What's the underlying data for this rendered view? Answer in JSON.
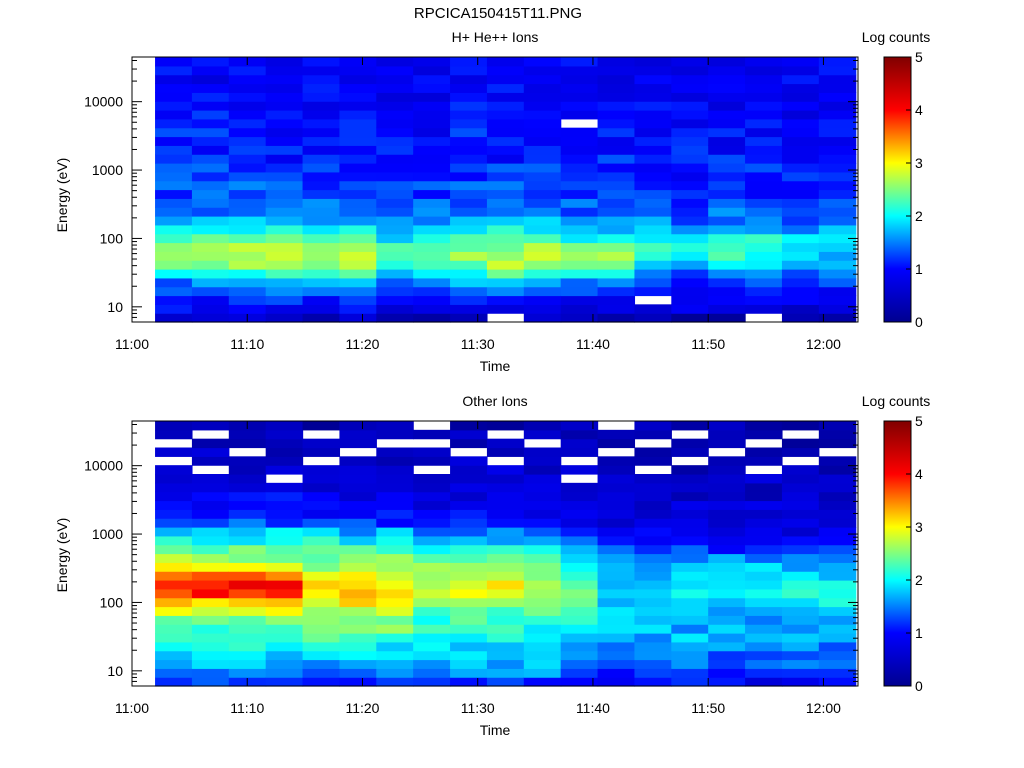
{
  "page_title": "RPCICA150415T11.PNG",
  "colors": {
    "colormap": [
      "#00008f",
      "#0000ff",
      "#00ffff",
      "#ffff00",
      "#ff0000",
      "#800000"
    ],
    "gap": "#ffffff"
  },
  "chart_data": [
    {
      "type": "heatmap",
      "title": "H+ He++ Ions",
      "xlabel": "Time",
      "ylabel": "Energy (eV)",
      "xticks": [
        "11:00",
        "11:10",
        "11:20",
        "11:30",
        "11:40",
        "11:50",
        "12:00"
      ],
      "xlim": [
        "11:00",
        "12:03"
      ],
      "y_scale": "log",
      "ylim": [
        6,
        45000
      ],
      "yticks": [
        "10",
        "100",
        "1000",
        "10000"
      ],
      "colorbar": {
        "label": "Log counts",
        "range": [
          0,
          5
        ],
        "ticks": [
          "0",
          "1",
          "2",
          "3",
          "4",
          "5"
        ]
      },
      "columns_start": "11:02",
      "column_minutes": 3.2,
      "energy_bins": 30,
      "profile_log_counts": [
        [
          0.4,
          0.9,
          1.0,
          1.2,
          1.5,
          1.9,
          2.3,
          2.6,
          2.5,
          2.2,
          1.9,
          1.6,
          1.5,
          1.4,
          1.3,
          1.3,
          1.2,
          1.2,
          1.2,
          1.1,
          1.1,
          1.1,
          1.0,
          1.0,
          1.0,
          1.0,
          0.9,
          0.9,
          0.9,
          0.9
        ],
        [
          0.5,
          0.9,
          1.1,
          1.4,
          1.8,
          2.2,
          2.5,
          2.7,
          2.6,
          2.3,
          2.0,
          1.7,
          1.5,
          1.4,
          1.3,
          1.3,
          1.2,
          1.2,
          1.2,
          1.1,
          1.1,
          1.1,
          1.0,
          1.0,
          1.0,
          1.0,
          0.9,
          0.9,
          0.9,
          0.9
        ],
        [
          0.5,
          0.9,
          1.1,
          1.4,
          1.8,
          2.2,
          2.6,
          2.8,
          2.6,
          2.3,
          2.0,
          1.7,
          1.5,
          1.4,
          1.3,
          1.3,
          1.2,
          1.2,
          1.1,
          1.1,
          1.1,
          1.0,
          1.0,
          1.0,
          1.0,
          0.9,
          0.9,
          0.9,
          0.9,
          0.9
        ],
        [
          0.4,
          0.8,
          1.0,
          1.2,
          1.5,
          1.9,
          2.3,
          2.5,
          2.4,
          2.1,
          1.8,
          1.6,
          1.4,
          1.3,
          1.2,
          1.2,
          1.2,
          1.1,
          1.1,
          1.1,
          1.0,
          1.0,
          1.0,
          1.0,
          0.9,
          0.9,
          0.9,
          0.9,
          0.9,
          0.9
        ],
        [
          0.3,
          0.8,
          1.0,
          1.1,
          1.3,
          1.6,
          1.9,
          2.2,
          2.2,
          2.0,
          1.8,
          1.5,
          1.4,
          1.3,
          1.2,
          1.2,
          1.1,
          1.1,
          1.1,
          1.0,
          1.0,
          1.0,
          1.0,
          0.9,
          0.9,
          0.9,
          0.9,
          0.9,
          0.9,
          0.9
        ],
        [
          0.2,
          0.7,
          0.9,
          1.0,
          1.2,
          1.4,
          1.6,
          1.8,
          1.9,
          1.8,
          1.6,
          1.4,
          1.3,
          1.2,
          1.2,
          1.1,
          1.1,
          1.1,
          1.0,
          1.0,
          1.0,
          1.0,
          0.9,
          0.9,
          0.9,
          0.9,
          0.9,
          0.9,
          0.9,
          0.9
        ]
      ],
      "column_profiles": [
        0,
        1,
        1,
        2,
        2,
        1,
        4,
        3,
        1,
        2,
        2,
        3,
        3,
        4,
        5,
        4,
        4,
        5,
        5
      ],
      "empty_cells": [
        [
          9,
          0
        ],
        [
          16,
          0
        ],
        [
          13,
          2
        ],
        [
          11,
          22
        ]
      ]
    },
    {
      "type": "heatmap",
      "title": "Other Ions",
      "xlabel": "Time",
      "ylabel": "Energy (eV)",
      "xticks": [
        "11:00",
        "11:10",
        "11:20",
        "11:30",
        "11:40",
        "11:50",
        "12:00"
      ],
      "xlim": [
        "11:00",
        "12:03"
      ],
      "y_scale": "log",
      "ylim": [
        6,
        45000
      ],
      "yticks": [
        "10",
        "100",
        "1000",
        "10000"
      ],
      "colorbar": {
        "label": "Log counts",
        "range": [
          0,
          5
        ],
        "ticks": [
          "0",
          "1",
          "2",
          "3",
          "4",
          "5"
        ]
      },
      "columns_start": "11:02",
      "column_minutes": 3.2,
      "energy_bins": 30,
      "profile_log_counts": [
        [
          1.2,
          1.5,
          1.7,
          1.8,
          2.0,
          2.1,
          2.3,
          2.5,
          2.8,
          3.3,
          3.8,
          4.0,
          3.6,
          3.0,
          2.6,
          2.3,
          2.1,
          1.9,
          1.3,
          1.1,
          1.0,
          0.9,
          0.8,
          0.7,
          0.6,
          0.5,
          0.5,
          0.4,
          0.4,
          0.3
        ],
        [
          1.2,
          1.5,
          1.7,
          1.9,
          2.0,
          2.2,
          2.4,
          2.6,
          2.8,
          3.0,
          3.2,
          3.2,
          3.0,
          2.7,
          2.4,
          2.2,
          2.0,
          1.7,
          1.2,
          1.0,
          0.9,
          0.8,
          0.7,
          0.6,
          0.6,
          0.5,
          0.5,
          0.4,
          0.4,
          0.3
        ],
        [
          1.2,
          1.5,
          1.7,
          1.8,
          1.9,
          2.0,
          2.1,
          2.2,
          2.4,
          2.6,
          2.8,
          2.9,
          2.7,
          2.5,
          2.3,
          2.1,
          1.8,
          1.5,
          1.1,
          0.9,
          0.8,
          0.7,
          0.7,
          0.6,
          0.6,
          0.5,
          0.5,
          0.4,
          0.4,
          0.3
        ],
        [
          1.0,
          1.3,
          1.5,
          1.6,
          1.7,
          1.8,
          1.9,
          2.0,
          2.1,
          2.3,
          2.4,
          2.5,
          2.4,
          2.2,
          2.0,
          1.7,
          1.4,
          1.2,
          0.9,
          0.8,
          0.7,
          0.7,
          0.6,
          0.6,
          0.5,
          0.5,
          0.5,
          0.4,
          0.4,
          0.3
        ],
        [
          1.0,
          1.2,
          1.4,
          1.5,
          1.6,
          1.7,
          1.7,
          1.8,
          1.8,
          1.9,
          1.9,
          1.9,
          1.8,
          1.7,
          1.5,
          1.2,
          1.0,
          0.8,
          0.7,
          0.6,
          0.6,
          0.5,
          0.5,
          0.5,
          0.4,
          0.4,
          0.4,
          0.3,
          0.3,
          0.3
        ],
        [
          0.9,
          1.1,
          1.3,
          1.4,
          1.5,
          1.6,
          1.7,
          1.7,
          1.8,
          1.9,
          2.0,
          2.0,
          1.9,
          1.7,
          1.5,
          1.2,
          1.0,
          0.8,
          0.7,
          0.6,
          0.6,
          0.5,
          0.5,
          0.5,
          0.4,
          0.4,
          0.4,
          0.3,
          0.3,
          0.3
        ]
      ],
      "column_profiles": [
        0,
        0,
        0,
        0,
        1,
        1,
        1,
        2,
        2,
        2,
        2,
        3,
        4,
        4,
        4,
        5,
        5,
        5,
        5
      ],
      "empty_cells": [
        [
          0,
          25
        ],
        [
          0,
          27
        ],
        [
          1,
          24
        ],
        [
          1,
          28
        ],
        [
          2,
          26
        ],
        [
          3,
          23
        ],
        [
          4,
          25
        ],
        [
          4,
          28
        ],
        [
          5,
          26
        ],
        [
          6,
          27
        ],
        [
          7,
          24
        ],
        [
          7,
          27
        ],
        [
          7,
          29
        ],
        [
          8,
          26
        ],
        [
          9,
          25
        ],
        [
          9,
          28
        ],
        [
          10,
          27
        ],
        [
          11,
          23
        ],
        [
          11,
          25
        ],
        [
          12,
          26
        ],
        [
          12,
          29
        ],
        [
          13,
          24
        ],
        [
          13,
          27
        ],
        [
          14,
          25
        ],
        [
          14,
          28
        ],
        [
          15,
          26
        ],
        [
          16,
          24
        ],
        [
          16,
          27
        ],
        [
          17,
          25
        ],
        [
          17,
          28
        ],
        [
          18,
          26
        ]
      ]
    }
  ]
}
